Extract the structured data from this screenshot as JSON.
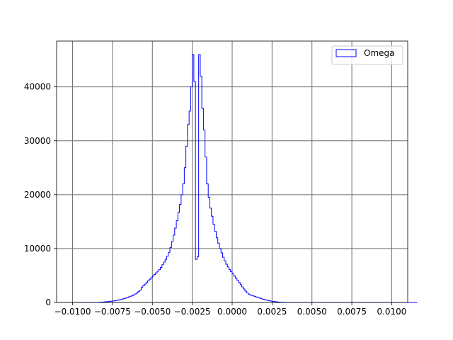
{
  "chart_data": {
    "type": "histogram",
    "title": "",
    "xlabel": "",
    "ylabel": "",
    "xlim": [
      -0.011,
      0.011
    ],
    "ylim": [
      0,
      48500
    ],
    "grid": true,
    "grid_color": "#6e6e6e",
    "legend_position": "top-right",
    "x_ticks": [
      -0.01,
      -0.0075,
      -0.005,
      -0.0025,
      0.0,
      0.0025,
      0.005,
      0.0075,
      0.01
    ],
    "x_tick_labels": [
      "−0.0100",
      "−0.0075",
      "−0.0050",
      "−0.0025",
      "0.0000",
      "0.0025",
      "0.0050",
      "0.0075",
      "0.0100"
    ],
    "y_ticks": [
      0,
      10000,
      20000,
      30000,
      40000
    ],
    "y_tick_labels": [
      "0",
      "10000",
      "20000",
      "30000",
      "40000"
    ],
    "bin_start": -0.01,
    "bin_width": 0.0001,
    "series": [
      {
        "name": "Omega",
        "color": "#0000ff",
        "style": "step",
        "values": [
          0,
          0,
          0,
          0,
          0,
          0,
          0,
          0,
          0,
          0,
          0,
          0,
          0,
          0,
          0,
          0,
          20,
          40,
          60,
          80,
          110,
          140,
          170,
          200,
          240,
          280,
          320,
          370,
          430,
          490,
          560,
          640,
          720,
          820,
          920,
          1030,
          1150,
          1280,
          1420,
          1580,
          1760,
          2000,
          2300,
          2800,
          3100,
          3400,
          3700,
          4000,
          4300,
          4600,
          4900,
          5200,
          5500,
          5800,
          6100,
          6500,
          7000,
          7500,
          8000,
          8600,
          9300,
          10200,
          11300,
          12500,
          13800,
          15200,
          16700,
          18200,
          20000,
          22000,
          25000,
          29000,
          33000,
          35500,
          40000,
          46000,
          41000,
          8000,
          8500,
          46000,
          42000,
          36000,
          32000,
          27000,
          22000,
          19500,
          17500,
          16000,
          14500,
          13200,
          12000,
          11000,
          10000,
          9200,
          8400,
          7700,
          7100,
          6600,
          6100,
          5700,
          5300,
          4900,
          4500,
          4100,
          3700,
          3300,
          2900,
          2500,
          2100,
          1800,
          1550,
          1400,
          1300,
          1200,
          1100,
          1000,
          900,
          800,
          700,
          600,
          520,
          450,
          380,
          320,
          260,
          210,
          170,
          130,
          100,
          70,
          50,
          30,
          15,
          10,
          0,
          0,
          0,
          0,
          0,
          0,
          0,
          0,
          0,
          0,
          0,
          0,
          0,
          0,
          0,
          0,
          0,
          0,
          0,
          0,
          0,
          0,
          0,
          0,
          0,
          0,
          0,
          0,
          0,
          0,
          0,
          0,
          0,
          0,
          0,
          0,
          0,
          0,
          0,
          0,
          0,
          0,
          0,
          0,
          0,
          0,
          0,
          0,
          0,
          0,
          0,
          0,
          0,
          0,
          0,
          0,
          0,
          0,
          0,
          0,
          0,
          0,
          0,
          0,
          0,
          0,
          0,
          0,
          0,
          0,
          0,
          0,
          0,
          0,
          0,
          0,
          0,
          0,
          0,
          0,
          0,
          0
        ]
      }
    ]
  }
}
